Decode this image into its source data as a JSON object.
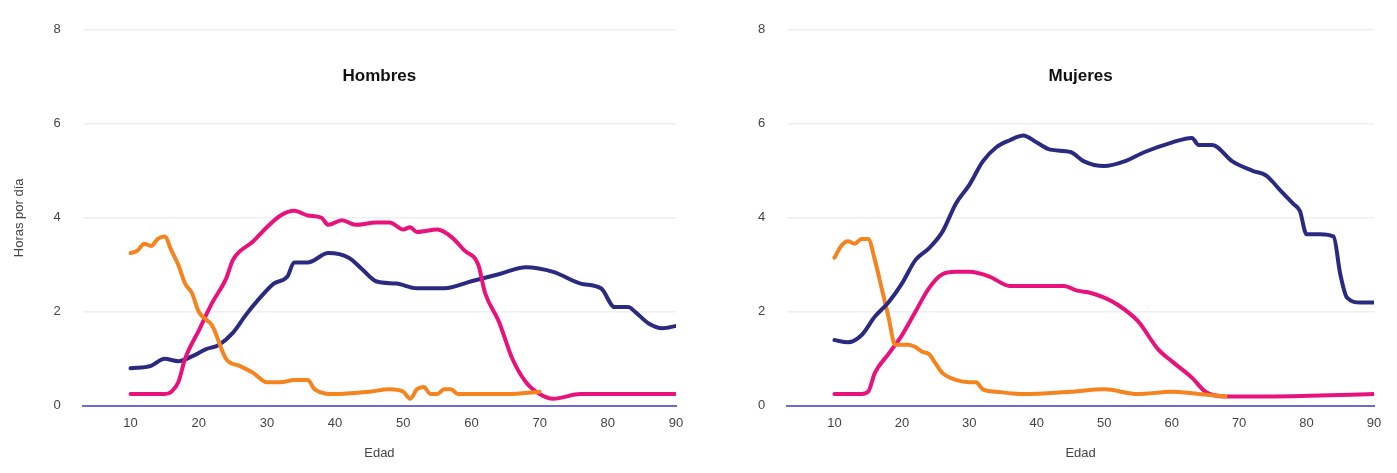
{
  "chart_data": [
    {
      "type": "line",
      "title": "Hombres",
      "xlabel": "Edad",
      "ylabel": "Horas por día",
      "xlim": [
        3,
        90
      ],
      "xticks": [
        10,
        20,
        30,
        40,
        50,
        60,
        70,
        80,
        90
      ],
      "ylim": [
        0,
        8
      ],
      "yticks": [
        0,
        2,
        4,
        6,
        8
      ],
      "grid": "y",
      "marker": "none",
      "line_style": "solid",
      "series": [
        {
          "color": "#f5841f",
          "x": [
            10,
            11,
            12,
            13,
            14,
            15,
            16,
            17,
            18,
            19,
            20,
            22,
            24,
            26,
            28,
            30,
            32,
            34,
            36,
            37,
            40,
            45,
            48,
            50,
            51,
            52,
            53,
            54,
            55,
            56,
            57,
            58,
            65,
            70
          ],
          "values": [
            3.25,
            3.3,
            3.45,
            3.4,
            3.55,
            3.6,
            3.3,
            3.0,
            2.6,
            2.4,
            2.0,
            1.7,
            1.0,
            0.85,
            0.7,
            0.5,
            0.5,
            0.55,
            0.55,
            0.35,
            0.25,
            0.3,
            0.35,
            0.3,
            0.15,
            0.35,
            0.4,
            0.25,
            0.25,
            0.35,
            0.35,
            0.25,
            0.25,
            0.3
          ]
        },
        {
          "color": "#e8127c",
          "x": [
            10,
            15,
            16,
            17,
            18,
            20,
            22,
            24,
            25,
            28,
            30,
            32,
            34,
            36,
            38,
            39,
            41,
            43,
            46,
            48,
            50,
            51,
            52,
            55,
            57,
            59,
            61,
            62,
            64,
            66,
            68,
            70,
            72,
            76,
            80,
            90
          ],
          "values": [
            0.25,
            0.25,
            0.3,
            0.5,
            1.0,
            1.6,
            2.2,
            2.7,
            3.1,
            3.5,
            3.8,
            4.05,
            4.15,
            4.05,
            4.0,
            3.85,
            3.95,
            3.85,
            3.9,
            3.9,
            3.75,
            3.8,
            3.7,
            3.75,
            3.6,
            3.3,
            3.0,
            2.4,
            1.8,
            1.0,
            0.5,
            0.25,
            0.15,
            0.25,
            0.25,
            0.25
          ]
        },
        {
          "color": "#2a2a80",
          "x": [
            10,
            13,
            15,
            17,
            19,
            21,
            23,
            25,
            27,
            29,
            31,
            33,
            34,
            36,
            39,
            42,
            44,
            46,
            49,
            52,
            56,
            60,
            64,
            68,
            72,
            76,
            79,
            81,
            83,
            84,
            86,
            88,
            90
          ],
          "values": [
            0.8,
            0.85,
            1.0,
            0.95,
            1.05,
            1.2,
            1.3,
            1.55,
            1.95,
            2.3,
            2.6,
            2.75,
            3.05,
            3.05,
            3.25,
            3.15,
            2.9,
            2.65,
            2.6,
            2.5,
            2.5,
            2.65,
            2.8,
            2.95,
            2.85,
            2.6,
            2.5,
            2.1,
            2.1,
            2.0,
            1.75,
            1.65,
            1.7
          ]
        }
      ]
    },
    {
      "type": "line",
      "title": "Mujeres",
      "xlabel": "Edad",
      "xlim": [
        3,
        90
      ],
      "xticks": [
        10,
        20,
        30,
        40,
        50,
        60,
        70,
        80,
        90
      ],
      "ylim": [
        0,
        8
      ],
      "yticks": [
        0,
        2,
        4,
        6,
        8
      ],
      "grid": "y",
      "marker": "none",
      "line_style": "solid",
      "series": [
        {
          "color": "#2a2a80",
          "x": [
            10,
            12,
            14,
            16,
            18,
            20,
            22,
            24,
            26,
            28,
            30,
            32,
            34,
            36,
            38,
            40,
            42,
            45,
            47,
            50,
            53,
            56,
            60,
            63,
            64,
            66,
            69,
            72,
            74,
            76,
            78,
            79,
            80,
            82,
            84,
            85,
            86,
            88,
            90
          ],
          "values": [
            1.4,
            1.35,
            1.5,
            1.9,
            2.2,
            2.6,
            3.1,
            3.35,
            3.7,
            4.3,
            4.7,
            5.2,
            5.5,
            5.65,
            5.75,
            5.6,
            5.45,
            5.4,
            5.2,
            5.1,
            5.2,
            5.4,
            5.6,
            5.7,
            5.55,
            5.55,
            5.2,
            5.0,
            4.9,
            4.6,
            4.3,
            4.15,
            3.65,
            3.65,
            3.6,
            2.8,
            2.3,
            2.2,
            2.2
          ]
        },
        {
          "color": "#f5841f",
          "x": [
            10,
            11,
            12,
            13,
            14,
            15,
            16,
            17,
            18,
            19,
            21,
            22,
            23,
            24,
            25,
            26,
            28,
            30,
            31,
            32,
            34,
            38,
            45,
            50,
            55,
            60,
            64,
            68
          ],
          "values": [
            3.15,
            3.4,
            3.5,
            3.45,
            3.55,
            3.55,
            3.1,
            2.5,
            1.9,
            1.3,
            1.3,
            1.25,
            1.15,
            1.1,
            0.9,
            0.7,
            0.55,
            0.5,
            0.5,
            0.35,
            0.3,
            0.25,
            0.3,
            0.35,
            0.25,
            0.3,
            0.25,
            0.2
          ]
        },
        {
          "color": "#e8127c",
          "x": [
            10,
            14,
            15,
            16,
            18,
            20,
            22,
            24,
            26,
            28,
            30,
            33,
            36,
            40,
            44,
            46,
            48,
            50,
            52,
            55,
            58,
            60,
            63,
            65,
            68,
            75,
            90
          ],
          "values": [
            0.25,
            0.25,
            0.3,
            0.7,
            1.1,
            1.5,
            2.0,
            2.5,
            2.8,
            2.85,
            2.85,
            2.75,
            2.55,
            2.55,
            2.55,
            2.45,
            2.4,
            2.3,
            2.15,
            1.8,
            1.2,
            0.95,
            0.6,
            0.3,
            0.2,
            0.2,
            0.25
          ]
        }
      ]
    }
  ]
}
